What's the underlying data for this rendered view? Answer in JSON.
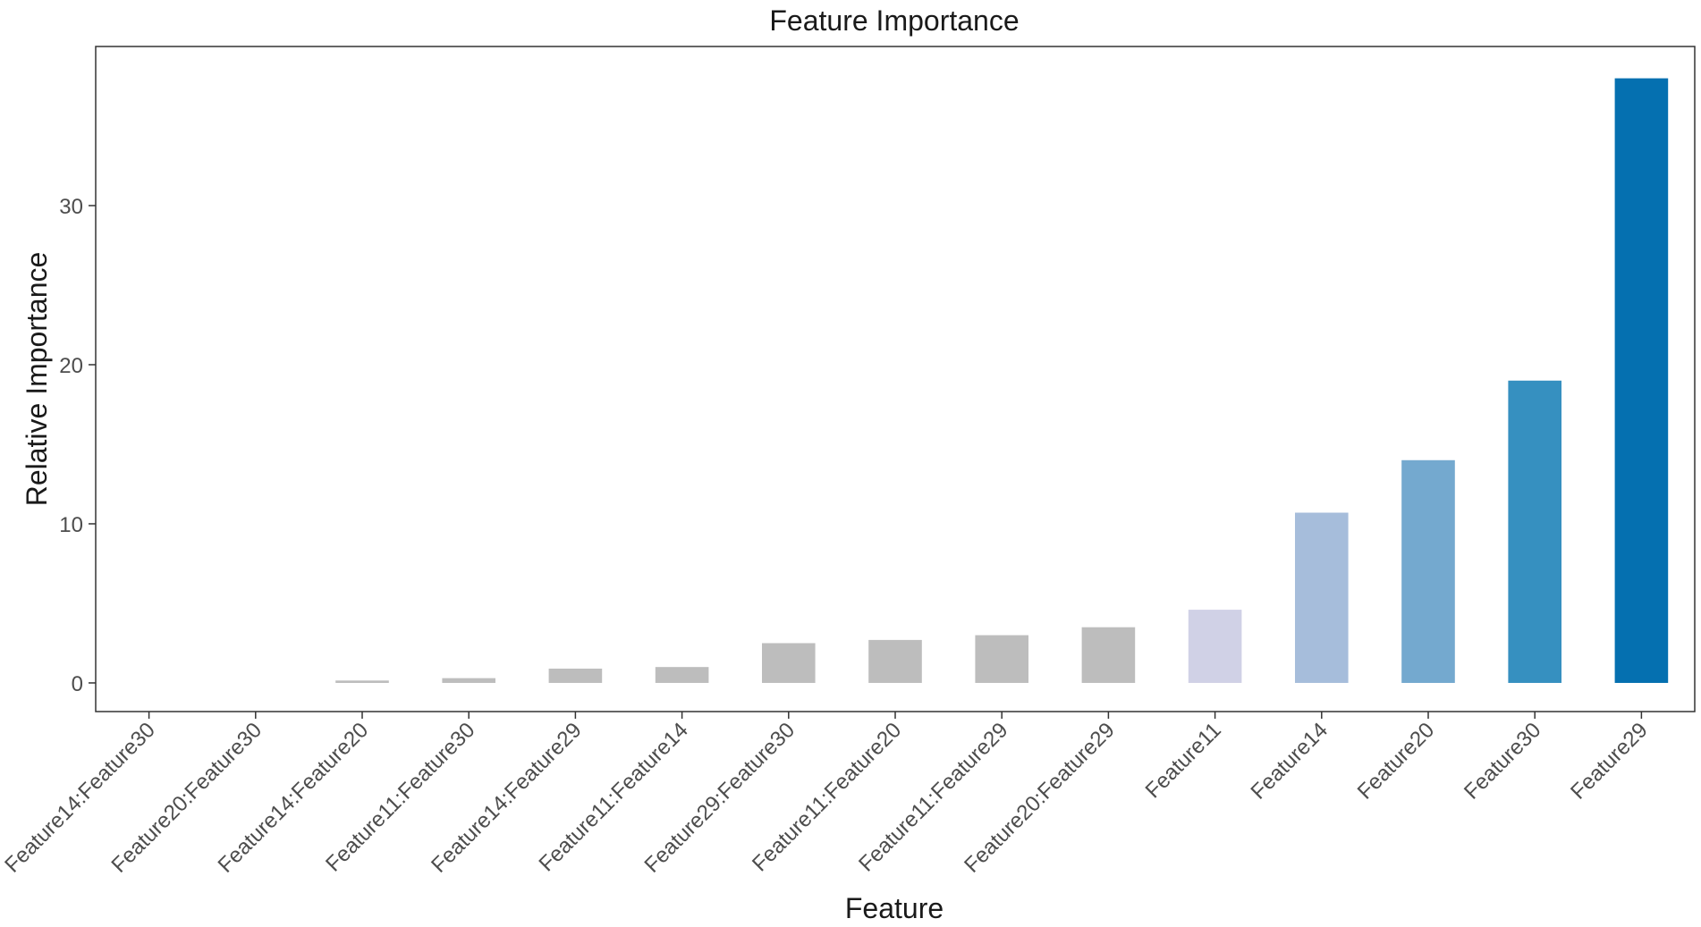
{
  "chart_data": {
    "type": "bar",
    "title": "Feature Importance",
    "xlabel": "Feature",
    "ylabel": "Relative Importance",
    "categories": [
      "Feature14:Feature30",
      "Feature20:Feature30",
      "Feature14:Feature20",
      "Feature11:Feature30",
      "Feature14:Feature29",
      "Feature11:Feature14",
      "Feature29:Feature30",
      "Feature11:Feature20",
      "Feature11:Feature29",
      "Feature20:Feature29",
      "Feature11",
      "Feature14",
      "Feature20",
      "Feature30",
      "Feature29"
    ],
    "values": [
      0.0,
      0.0,
      0.15,
      0.3,
      0.9,
      1.0,
      2.5,
      2.7,
      3.0,
      3.5,
      4.6,
      10.7,
      14.0,
      19.0,
      38.0
    ],
    "colors": [
      "#bdbdbd",
      "#bdbdbd",
      "#bdbdbd",
      "#bdbdbd",
      "#bdbdbd",
      "#bdbdbd",
      "#bdbdbd",
      "#bdbdbd",
      "#bdbdbd",
      "#bdbdbd",
      "#d0d1e6",
      "#a6bddb",
      "#74a9cf",
      "#3690c0",
      "#0570b0"
    ],
    "yticks": [
      0,
      10,
      20,
      30
    ],
    "ylim": [
      -1.8,
      40
    ],
    "grid": false,
    "legend": "none"
  }
}
